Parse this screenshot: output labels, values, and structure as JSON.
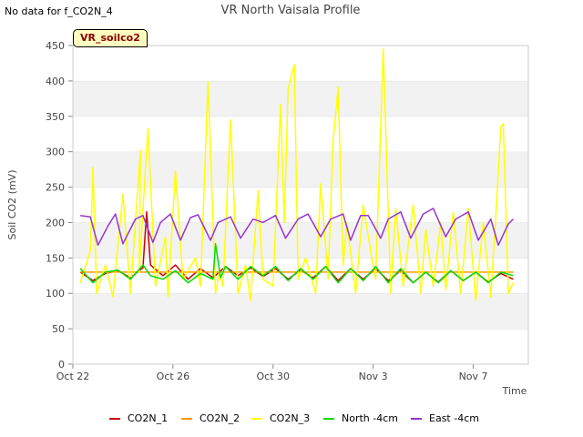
{
  "status_note": "No data for f_CO2N_4",
  "badge": "VR_soilco2",
  "chart_data": {
    "type": "line",
    "title": "VR North Vaisala Profile",
    "xlabel": "Time",
    "ylabel": "Soil CO2 (mV)",
    "ylim": [
      0,
      450
    ],
    "yticks": [
      0,
      50,
      100,
      150,
      200,
      250,
      300,
      350,
      400,
      450
    ],
    "xlim": [
      0,
      18.2
    ],
    "xticks": [
      {
        "x": 0,
        "label": "Oct 22"
      },
      {
        "x": 4,
        "label": "Oct 26"
      },
      {
        "x": 8,
        "label": "Oct 30"
      },
      {
        "x": 12,
        "label": "Nov 3"
      },
      {
        "x": 16,
        "label": "Nov 7"
      }
    ],
    "grid": "alternating horizontal bands",
    "legend_position": "bottom",
    "series": [
      {
        "name": "CO2N_1",
        "color": "#cc0000",
        "x": [
          0.3,
          0.8,
          1.3,
          1.8,
          2.3,
          2.8,
          2.95,
          3.1,
          3.6,
          4.1,
          4.6,
          5.1,
          5.6,
          6.1,
          6.6,
          7.1,
          7.6,
          8.1,
          8.6,
          9.1,
          9.6,
          10.1,
          10.6,
          11.1,
          11.6,
          12.1,
          12.6,
          13.1,
          13.6,
          14.1,
          14.6,
          15.1,
          15.6,
          16.1,
          16.6,
          17.1,
          17.6
        ],
        "values": [
          130,
          118,
          128,
          132,
          122,
          136,
          215,
          140,
          125,
          140,
          120,
          135,
          122,
          138,
          125,
          136,
          124,
          135,
          120,
          133,
          122,
          138,
          118,
          135,
          120,
          135,
          118,
          132,
          115,
          130,
          116,
          132,
          118,
          130,
          116,
          128,
          120
        ]
      },
      {
        "name": "CO2N_2",
        "color": "#ff9900",
        "x": [
          0.3,
          17.6
        ],
        "values": [
          130,
          130
        ]
      },
      {
        "name": "CO2N_3",
        "color": "#ffff00",
        "x": [
          0.3,
          0.7,
          0.8,
          0.95,
          1.3,
          1.6,
          2.0,
          2.3,
          2.7,
          2.65,
          3.0,
          3.3,
          3.7,
          3.8,
          4.1,
          4.4,
          4.9,
          5.1,
          5.4,
          5.7,
          5.85,
          6.0,
          6.3,
          6.6,
          6.9,
          7.1,
          7.4,
          7.6,
          8.0,
          8.3,
          8.45,
          8.6,
          8.85,
          9.0,
          9.3,
          9.7,
          9.9,
          10.2,
          10.4,
          10.6,
          10.8,
          10.95,
          11.3,
          11.6,
          11.9,
          12.1,
          12.4,
          12.7,
          12.9,
          13.2,
          13.6,
          13.9,
          14.1,
          14.4,
          14.7,
          14.9,
          15.2,
          15.5,
          15.8,
          16.1,
          16.4,
          16.7,
          16.9,
          17.1,
          17.2,
          17.4,
          17.6
        ],
        "values": [
          115,
          160,
          278,
          100,
          140,
          95,
          240,
          100,
          302,
          130,
          333,
          110,
          180,
          95,
          273,
          120,
          150,
          110,
          398,
          100,
          130,
          110,
          345,
          100,
          140,
          90,
          245,
          120,
          110,
          367,
          200,
          390,
          423,
          120,
          150,
          100,
          255,
          120,
          315,
          391,
          140,
          200,
          100,
          225,
          160,
          120,
          445,
          100,
          220,
          110,
          225,
          100,
          190,
          110,
          200,
          105,
          215,
          100,
          220,
          90,
          200,
          95,
          210,
          335,
          340,
          100,
          115
        ]
      },
      {
        "name": "North -4cm",
        "color": "#00dd00",
        "x": [
          0.3,
          0.8,
          1.3,
          1.8,
          2.3,
          2.8,
          3.1,
          3.6,
          4.1,
          4.6,
          5.1,
          5.6,
          5.7,
          5.9,
          6.1,
          6.6,
          7.1,
          7.6,
          8.1,
          8.6,
          9.1,
          9.6,
          10.1,
          10.6,
          11.1,
          11.6,
          12.1,
          12.6,
          13.1,
          13.6,
          14.1,
          14.6,
          15.1,
          15.6,
          16.1,
          16.6,
          17.1,
          17.6
        ],
        "values": [
          135,
          115,
          130,
          133,
          120,
          140,
          125,
          120,
          132,
          115,
          128,
          120,
          170,
          122,
          138,
          120,
          138,
          125,
          138,
          118,
          135,
          120,
          138,
          115,
          135,
          118,
          138,
          115,
          135,
          115,
          130,
          115,
          132,
          118,
          130,
          115,
          130,
          125
        ]
      },
      {
        "name": "East -4cm",
        "color": "#9933cc",
        "x": [
          0.3,
          0.7,
          1.0,
          1.4,
          1.7,
          2.0,
          2.5,
          2.8,
          3.2,
          3.5,
          3.9,
          4.3,
          4.7,
          5.0,
          5.5,
          5.8,
          6.3,
          6.7,
          7.2,
          7.6,
          8.1,
          8.5,
          9.0,
          9.4,
          9.9,
          10.3,
          10.8,
          11.1,
          11.5,
          11.8,
          12.3,
          12.6,
          13.1,
          13.5,
          14.0,
          14.4,
          14.9,
          15.3,
          15.8,
          16.2,
          16.7,
          17.0,
          17.4,
          17.6
        ],
        "values": [
          210,
          208,
          168,
          195,
          212,
          170,
          205,
          210,
          172,
          200,
          212,
          175,
          207,
          211,
          175,
          200,
          208,
          178,
          205,
          200,
          210,
          178,
          205,
          212,
          180,
          205,
          212,
          175,
          210,
          210,
          178,
          205,
          215,
          178,
          212,
          220,
          180,
          205,
          215,
          175,
          205,
          168,
          198,
          205
        ]
      }
    ]
  }
}
